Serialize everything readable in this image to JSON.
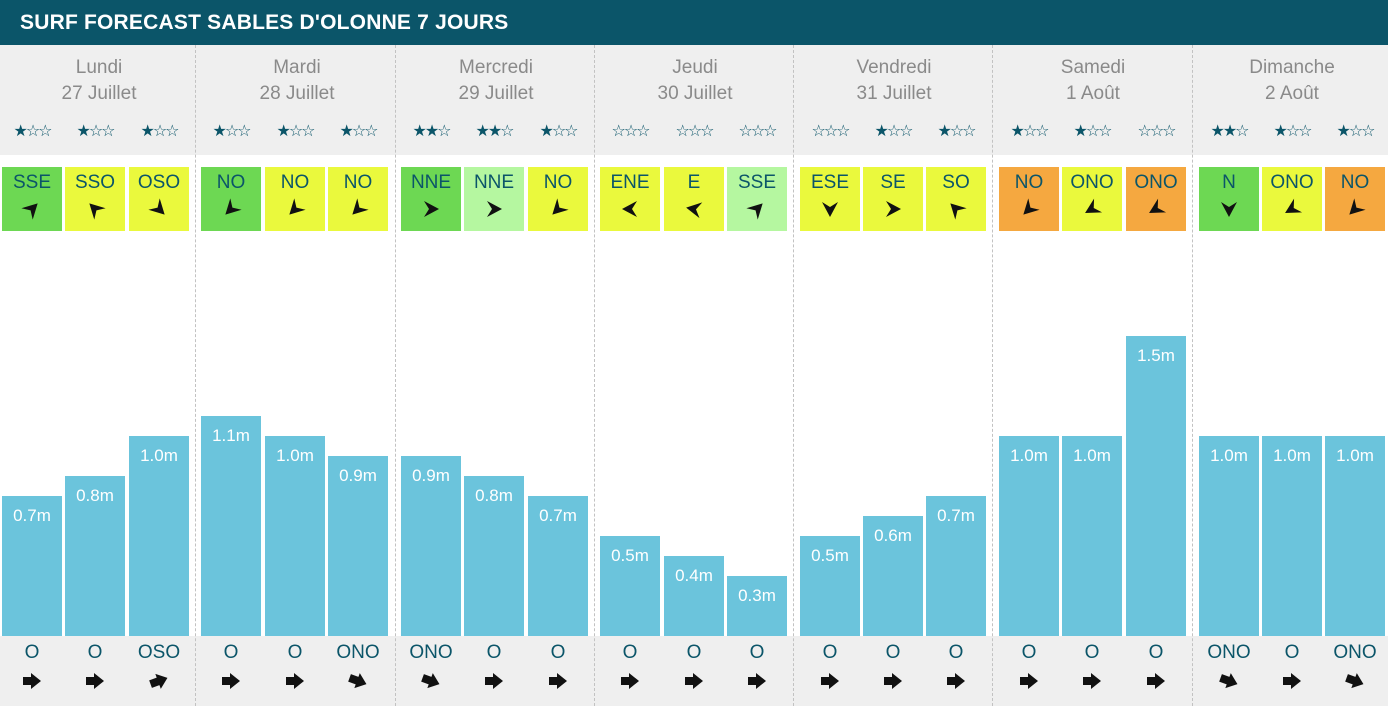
{
  "title": "SURF FORECAST SABLES D'OLONNE 7 JOURS",
  "colors": {
    "header_bg": "#0b5569",
    "text_teal": "#0b5569",
    "bar": "#6bc4dc",
    "wind_green": "#6dd853",
    "wind_light_green": "#b5f7a0",
    "wind_yellow": "#eaf93d",
    "wind_orange": "#f5a840"
  },
  "days": [
    {
      "name": "Lundi",
      "date": "27 Juillet"
    },
    {
      "name": "Mardi",
      "date": "28 Juillet"
    },
    {
      "name": "Mercredi",
      "date": "29 Juillet"
    },
    {
      "name": "Jeudi",
      "date": "30 Juillet"
    },
    {
      "name": "Vendredi",
      "date": "31 Juillet"
    },
    {
      "name": "Samedi",
      "date": "1 Août"
    },
    {
      "name": "Dimanche",
      "date": "2 Août"
    }
  ],
  "chart_data": {
    "type": "bar",
    "unit": "m",
    "ylim": [
      0,
      1.5
    ],
    "grid": false,
    "categories": [
      "Lundi 1",
      "Lundi 2",
      "Lundi 3",
      "Mardi 1",
      "Mardi 2",
      "Mardi 3",
      "Mercredi 1",
      "Mercredi 2",
      "Mercredi 3",
      "Jeudi 1",
      "Jeudi 2",
      "Jeudi 3",
      "Vendredi 1",
      "Vendredi 2",
      "Vendredi 3",
      "Samedi 1",
      "Samedi 2",
      "Samedi 3",
      "Dimanche 1",
      "Dimanche 2",
      "Dimanche 3"
    ],
    "values": [
      0.7,
      0.8,
      1.0,
      1.1,
      1.0,
      0.9,
      0.9,
      0.8,
      0.7,
      0.5,
      0.4,
      0.3,
      0.5,
      0.6,
      0.7,
      1.0,
      1.0,
      1.5,
      1.0,
      1.0,
      1.0
    ],
    "labels": [
      "0.7m",
      "0.8m",
      "1.0m",
      "1.1m",
      "1.0m",
      "0.9m",
      "0.9m",
      "0.8m",
      "0.7m",
      "0.5m",
      "0.4m",
      "0.3m",
      "0.5m",
      "0.6m",
      "0.7m",
      "1.0m",
      "1.0m",
      "1.5m",
      "1.0m",
      "1.0m",
      "1.0m"
    ],
    "stars": [
      1,
      1,
      1,
      1,
      1,
      1,
      2,
      2,
      1,
      0,
      0,
      0,
      0,
      1,
      1,
      1,
      1,
      0,
      2,
      1,
      1
    ],
    "wind": [
      {
        "dir": "SSE",
        "color": "#6dd853",
        "rot": 315
      },
      {
        "dir": "SSO",
        "color": "#eaf93d",
        "rot": 225
      },
      {
        "dir": "OSO",
        "color": "#eaf93d",
        "rot": 45
      },
      {
        "dir": "NO",
        "color": "#6dd853",
        "rot": 135
      },
      {
        "dir": "NO",
        "color": "#eaf93d",
        "rot": 135
      },
      {
        "dir": "NO",
        "color": "#eaf93d",
        "rot": 135
      },
      {
        "dir": "NNE",
        "color": "#6dd853",
        "rot": 0
      },
      {
        "dir": "NNE",
        "color": "#b5f7a0",
        "rot": 0
      },
      {
        "dir": "NO",
        "color": "#eaf93d",
        "rot": 135
      },
      {
        "dir": "ENE",
        "color": "#eaf93d",
        "rot": 180
      },
      {
        "dir": "E",
        "color": "#eaf93d",
        "rot": 190
      },
      {
        "dir": "SSE",
        "color": "#b5f7a0",
        "rot": 315
      },
      {
        "dir": "ESE",
        "color": "#eaf93d",
        "rot": 90
      },
      {
        "dir": "SE",
        "color": "#eaf93d",
        "rot": 0
      },
      {
        "dir": "SO",
        "color": "#eaf93d",
        "rot": 225
      },
      {
        "dir": "NO",
        "color": "#f5a840",
        "rot": 135
      },
      {
        "dir": "ONO",
        "color": "#eaf93d",
        "rot": 150
      },
      {
        "dir": "ONO",
        "color": "#f5a840",
        "rot": 150
      },
      {
        "dir": "N",
        "color": "#6dd853",
        "rot": 90
      },
      {
        "dir": "ONO",
        "color": "#eaf93d",
        "rot": 150
      },
      {
        "dir": "NO",
        "color": "#f5a840",
        "rot": 135
      }
    ],
    "swell": [
      {
        "dir": "O",
        "rot": 0
      },
      {
        "dir": "O",
        "rot": 0
      },
      {
        "dir": "OSO",
        "rot": -20
      },
      {
        "dir": "O",
        "rot": 0
      },
      {
        "dir": "O",
        "rot": 0
      },
      {
        "dir": "ONO",
        "rot": 20
      },
      {
        "dir": "ONO",
        "rot": 20
      },
      {
        "dir": "O",
        "rot": 0
      },
      {
        "dir": "O",
        "rot": 0
      },
      {
        "dir": "O",
        "rot": 0
      },
      {
        "dir": "O",
        "rot": 0
      },
      {
        "dir": "O",
        "rot": 0
      },
      {
        "dir": "O",
        "rot": 0
      },
      {
        "dir": "O",
        "rot": 0
      },
      {
        "dir": "O",
        "rot": 0
      },
      {
        "dir": "O",
        "rot": 0
      },
      {
        "dir": "O",
        "rot": 0
      },
      {
        "dir": "O",
        "rot": 0
      },
      {
        "dir": "ONO",
        "rot": 20
      },
      {
        "dir": "O",
        "rot": 0
      },
      {
        "dir": "ONO",
        "rot": 20
      }
    ]
  }
}
